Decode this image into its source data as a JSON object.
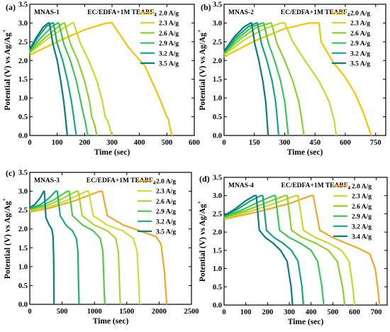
{
  "figure": {
    "panels": [
      {
        "tag": "(a)",
        "sample": "MNAS-1",
        "electrolyte": "EC/EDFA+1M TEABF",
        "electrolyte_sub": "4"
      },
      {
        "tag": "(b)",
        "sample": "MNAS-2",
        "electrolyte": "EC/EDFA+1M TEABF",
        "electrolyte_sub": "4"
      },
      {
        "tag": "(c)",
        "sample": "MNAS-3",
        "electrolyte": "EC/EDFA+1M TEABF",
        "electrolyte_sub": "4"
      },
      {
        "tag": "(d)",
        "sample": "MNAS-4",
        "electrolyte": "EC/EDFA+1M TEABF",
        "electrolyte_sub": "4"
      }
    ]
  },
  "chart_data": [
    {
      "type": "line",
      "xlabel": "Time (sec)",
      "ylabel": "Potential (V) vs Ag/Ag",
      "ylabel_sup": "+",
      "xlim": [
        0,
        600
      ],
      "ylim": [
        0,
        3.5
      ],
      "xticks": [
        0,
        100,
        200,
        300,
        400,
        500,
        600
      ],
      "yticks": [
        0.0,
        0.5,
        1.0,
        1.5,
        2.0,
        2.5,
        3.0,
        3.5
      ],
      "legend_position": "top-right",
      "series": [
        {
          "name": "2.0 A/g",
          "color": "#F5C400",
          "x": [
            0,
            100,
            200,
            280,
            300,
            360,
            420,
            470,
            500,
            506,
            508,
            511,
            516,
            520
          ],
          "y": [
            2.15,
            2.5,
            2.82,
            3.0,
            3.0,
            2.35,
            1.85,
            1.05,
            0.5,
            0.42,
            0.35,
            0.22,
            0.08,
            0.0
          ]
        },
        {
          "name": "2.3 A/g",
          "color": "#C6D92C",
          "x": [
            0,
            60,
            120,
            155,
            160,
            185,
            215,
            245,
            265,
            275,
            283,
            288,
            292,
            296,
            300
          ],
          "y": [
            2.2,
            2.55,
            2.85,
            3.0,
            3.0,
            2.45,
            2.0,
            1.45,
            0.9,
            0.5,
            0.4,
            0.3,
            0.2,
            0.08,
            0.0
          ]
        },
        {
          "name": "2.6 A/g",
          "color": "#8CD02E",
          "x": [
            0,
            50,
            100,
            123,
            127,
            148,
            175,
            200,
            218,
            226,
            232,
            238,
            241,
            245
          ],
          "y": [
            2.22,
            2.57,
            2.88,
            3.0,
            3.0,
            2.45,
            2.0,
            1.45,
            0.9,
            0.5,
            0.38,
            0.25,
            0.12,
            0.0
          ]
        },
        {
          "name": "2.9 A/g",
          "color": "#3DC55B",
          "x": [
            0,
            40,
            80,
            102,
            106,
            124,
            148,
            170,
            186,
            196,
            203,
            208,
            212
          ],
          "y": [
            2.25,
            2.6,
            2.9,
            3.0,
            3.0,
            2.45,
            2.0,
            1.45,
            0.9,
            0.55,
            0.35,
            0.12,
            0.0
          ]
        },
        {
          "name": "3.2 A/g",
          "color": "#16A57E",
          "x": [
            0,
            30,
            60,
            82,
            86,
            100,
            120,
            138,
            152,
            160,
            165,
            170
          ],
          "y": [
            2.28,
            2.62,
            2.9,
            3.0,
            3.0,
            2.45,
            2.0,
            1.45,
            0.9,
            0.5,
            0.22,
            0.0
          ]
        },
        {
          "name": "3.5 A/g",
          "color": "#0B7A82",
          "x": [
            0,
            25,
            50,
            68,
            72,
            84,
            100,
            113,
            124,
            130,
            134,
            137
          ],
          "y": [
            2.3,
            2.63,
            2.9,
            3.0,
            3.0,
            2.45,
            2.0,
            1.45,
            0.9,
            0.5,
            0.2,
            0.0
          ]
        }
      ]
    },
    {
      "type": "line",
      "xlabel": "Time (sec)",
      "ylabel": "Potential (V) vs Ag/Ag",
      "ylabel_sup": "+",
      "xlim": [
        0,
        800
      ],
      "ylim": [
        0,
        3.5
      ],
      "xticks": [
        0,
        150,
        300,
        450,
        600,
        750
      ],
      "yticks": [
        0.0,
        0.5,
        1.0,
        1.5,
        2.0,
        2.5,
        3.0,
        3.5
      ],
      "legend_position": "top-right",
      "series": [
        {
          "name": "2.0 A/g",
          "color": "#F5C400",
          "x": [
            0,
            150,
            300,
            420,
            470,
            480,
            540,
            600,
            650,
            690,
            715,
            728
          ],
          "y": [
            2.1,
            2.52,
            2.85,
            3.0,
            3.0,
            2.5,
            1.95,
            1.55,
            1.1,
            0.6,
            0.2,
            0.0
          ]
        },
        {
          "name": "2.3 A/g",
          "color": "#C6D92C",
          "x": [
            0,
            100,
            200,
            285,
            300,
            340,
            400,
            470,
            520,
            545,
            555
          ],
          "y": [
            2.15,
            2.55,
            2.85,
            3.0,
            3.0,
            2.5,
            2.0,
            1.45,
            0.9,
            0.4,
            0.0
          ]
        },
        {
          "name": "2.6 A/g",
          "color": "#8CD02E",
          "x": [
            0,
            80,
            160,
            228,
            234,
            262,
            300,
            340,
            370,
            385,
            395
          ],
          "y": [
            2.18,
            2.57,
            2.88,
            3.0,
            3.0,
            2.45,
            2.0,
            1.45,
            0.9,
            0.4,
            0.0
          ]
        },
        {
          "name": "2.9 A/g",
          "color": "#3DC55B",
          "x": [
            0,
            70,
            140,
            190,
            196,
            220,
            250,
            280,
            300,
            310,
            318
          ],
          "y": [
            2.2,
            2.6,
            2.9,
            3.0,
            3.0,
            2.45,
            2.0,
            1.45,
            0.9,
            0.4,
            0.0
          ]
        },
        {
          "name": "3.2 A/g",
          "color": "#16A57E",
          "x": [
            0,
            60,
            120,
            160,
            165,
            185,
            212,
            238,
            255,
            264,
            270
          ],
          "y": [
            2.22,
            2.62,
            2.9,
            3.0,
            3.0,
            2.45,
            2.0,
            1.45,
            0.9,
            0.4,
            0.0
          ]
        },
        {
          "name": "3.5 A/g",
          "color": "#0B7A82",
          "x": [
            0,
            50,
            100,
            132,
            136,
            152,
            172,
            192,
            206,
            213,
            218
          ],
          "y": [
            2.25,
            2.63,
            2.9,
            3.0,
            3.0,
            2.45,
            2.0,
            1.45,
            0.9,
            0.4,
            0.0
          ]
        }
      ]
    },
    {
      "type": "line",
      "xlabel": "Time (sec)",
      "ylabel": "Potential (V) vs Ag/Ag",
      "ylabel_sup": "+",
      "xlim": [
        0,
        2500
      ],
      "ylim": [
        0,
        3.5
      ],
      "xticks": [
        0,
        500,
        1000,
        1500,
        2000,
        2500
      ],
      "yticks": [
        0.0,
        0.5,
        1.0,
        1.5,
        2.0,
        2.5,
        3.0,
        3.5
      ],
      "legend_position": "top-right",
      "series": [
        {
          "name": "2.0 A/g",
          "color": "#F5A623",
          "x": [
            0,
            300,
            700,
            1080,
            1120,
            1200,
            1450,
            1700,
            1950,
            2030,
            2080,
            2110,
            2120
          ],
          "y": [
            2.45,
            2.55,
            2.75,
            3.0,
            3.0,
            2.35,
            2.1,
            1.95,
            1.8,
            1.6,
            0.9,
            0.2,
            0.0
          ]
        },
        {
          "name": "2.3 A/g",
          "color": "#D4D93A",
          "x": [
            0,
            300,
            600,
            880,
            910,
            980,
            1200,
            1440,
            1600,
            1660,
            1690,
            1700
          ],
          "y": [
            2.48,
            2.58,
            2.78,
            3.0,
            3.0,
            2.35,
            2.1,
            1.95,
            1.75,
            1.4,
            0.4,
            0.0
          ]
        },
        {
          "name": "2.6 A/g",
          "color": "#A6D636",
          "x": [
            0,
            250,
            500,
            720,
            750,
            810,
            1000,
            1200,
            1330,
            1370,
            1390,
            1400
          ],
          "y": [
            2.5,
            2.6,
            2.8,
            3.0,
            3.0,
            2.35,
            2.1,
            1.95,
            1.75,
            1.4,
            0.4,
            0.0
          ]
        },
        {
          "name": "2.9 A/g",
          "color": "#55C94A",
          "x": [
            0,
            200,
            400,
            580,
            610,
            660,
            820,
            980,
            1090,
            1130,
            1150,
            1160
          ],
          "y": [
            2.52,
            2.62,
            2.8,
            3.0,
            3.0,
            2.35,
            2.1,
            1.95,
            1.75,
            1.4,
            0.4,
            0.0
          ]
        },
        {
          "name": "3.2 A/g",
          "color": "#1FAE6E",
          "x": [
            0,
            150,
            300,
            400,
            425,
            470,
            560,
            660,
            720,
            745,
            755,
            762
          ],
          "y": [
            2.55,
            2.63,
            2.82,
            3.0,
            3.0,
            2.35,
            2.1,
            1.95,
            1.75,
            1.4,
            0.4,
            0.0
          ]
        },
        {
          "name": "3.5 A/g",
          "color": "#0B7F88",
          "x": [
            0,
            80,
            160,
            215,
            225,
            250,
            300,
            340,
            360,
            370,
            375
          ],
          "y": [
            2.57,
            2.65,
            2.82,
            3.0,
            3.0,
            2.3,
            2.1,
            2.0,
            1.8,
            1.2,
            0.0
          ]
        }
      ]
    },
    {
      "type": "line",
      "xlabel": "Time (sec)",
      "ylabel": "Potential (V) vs Ag/Ag",
      "ylabel_sup": "+",
      "xlim": [
        0,
        750
      ],
      "ylim": [
        0,
        3.5
      ],
      "xticks": [
        0,
        100,
        200,
        300,
        400,
        500,
        600,
        700
      ],
      "yticks": [
        0.0,
        0.5,
        1.0,
        1.5,
        2.0,
        2.5,
        3.0,
        3.5
      ],
      "legend_position": "top-right",
      "series": [
        {
          "name": "2.0 A/g",
          "color": "#F5A623",
          "x": [
            0,
            150,
            300,
            400,
            410,
            440,
            500,
            560,
            620,
            670,
            695,
            708,
            715
          ],
          "y": [
            2.35,
            2.55,
            2.78,
            3.0,
            3.0,
            2.05,
            1.85,
            1.7,
            1.55,
            1.4,
            1.0,
            0.4,
            0.0
          ]
        },
        {
          "name": "2.3 A/g",
          "color": "#C6D92C",
          "x": [
            0,
            120,
            240,
            330,
            340,
            365,
            420,
            480,
            540,
            575,
            592,
            600
          ],
          "y": [
            2.37,
            2.57,
            2.8,
            3.0,
            3.0,
            2.05,
            1.85,
            1.7,
            1.5,
            1.2,
            0.5,
            0.0
          ]
        },
        {
          "name": "2.6 A/g",
          "color": "#8CD02E",
          "x": [
            0,
            100,
            200,
            280,
            290,
            310,
            360,
            420,
            480,
            520,
            545,
            555
          ],
          "y": [
            2.39,
            2.59,
            2.82,
            3.0,
            3.0,
            2.05,
            1.85,
            1.7,
            1.5,
            1.2,
            0.5,
            0.0
          ]
        },
        {
          "name": "2.9 A/g",
          "color": "#3DC55B",
          "x": [
            0,
            80,
            160,
            228,
            236,
            255,
            300,
            350,
            400,
            430,
            450,
            458
          ],
          "y": [
            2.41,
            2.6,
            2.83,
            3.0,
            3.0,
            2.05,
            1.85,
            1.7,
            1.5,
            1.2,
            0.5,
            0.0
          ]
        },
        {
          "name": "3.2 A/g",
          "color": "#16A57E",
          "x": [
            0,
            60,
            120,
            170,
            178,
            195,
            230,
            270,
            310,
            340,
            358,
            365
          ],
          "y": [
            2.43,
            2.62,
            2.85,
            3.0,
            3.0,
            2.05,
            1.85,
            1.7,
            1.5,
            1.2,
            0.5,
            0.0
          ]
        },
        {
          "name": "3.4 A/g",
          "color": "#0B7A82",
          "x": [
            0,
            50,
            100,
            140,
            148,
            162,
            190,
            225,
            260,
            290,
            308,
            315
          ],
          "y": [
            2.45,
            2.63,
            2.86,
            3.0,
            3.0,
            2.05,
            1.85,
            1.7,
            1.5,
            1.2,
            0.5,
            0.0
          ]
        }
      ]
    }
  ]
}
